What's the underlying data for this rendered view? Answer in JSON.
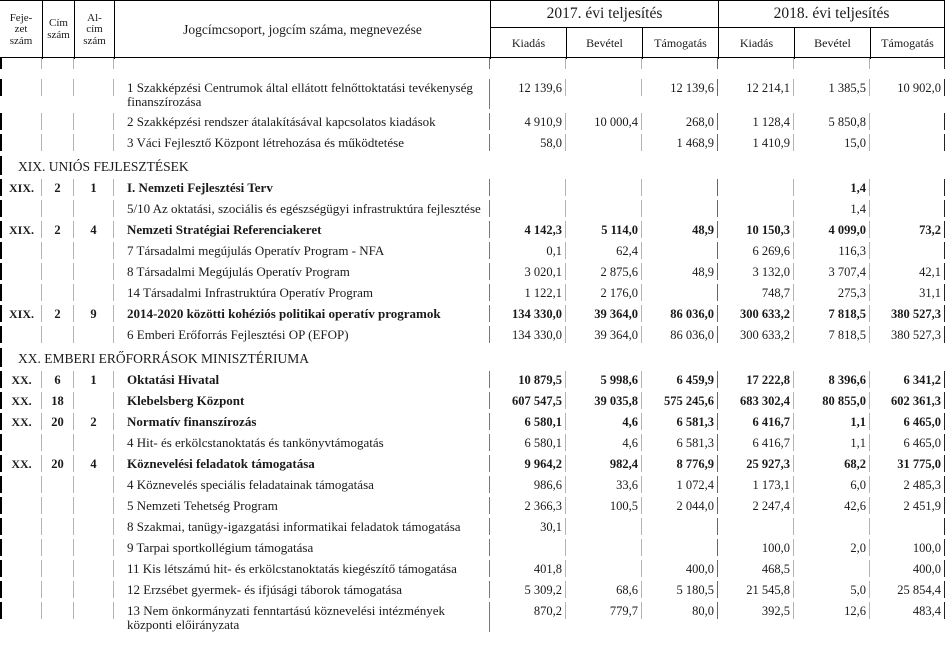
{
  "header": {
    "fejezet": "Feje-\nzet\nszám",
    "cim": "Cím\nszám",
    "alcim": "Al-\ncím\nszám",
    "name": "Jogcímcsoport, jogcím száma, megnevezése",
    "year2017": "2017. évi teljesítés",
    "year2018": "2018. évi teljesítés",
    "subcols": [
      "Kiadás",
      "Bevétel",
      "Támogatás"
    ]
  },
  "table": {
    "rows": [
      {
        "f": "",
        "c": "",
        "a": "",
        "n": "1 Szakképzési Centrumok által ellátott felnőttoktatási tevékenység finanszírozása",
        "b": false,
        "v": [
          "12 139,6",
          "",
          "12 139,6",
          "12 214,1",
          "1 385,5",
          "10 902,0"
        ]
      },
      {
        "f": "",
        "c": "",
        "a": "",
        "n": "2 Szakképzési rendszer átalakításával kapcsolatos kiadások",
        "b": false,
        "v": [
          "4 910,9",
          "10 000,4",
          "268,0",
          "1 128,4",
          "5 850,8",
          ""
        ]
      },
      {
        "f": "",
        "c": "",
        "a": "",
        "n": "3 Váci Fejlesztő Központ létrehozása és működtetése",
        "b": false,
        "v": [
          "58,0",
          "",
          "1 468,9",
          "1 410,9",
          "15,0",
          ""
        ]
      },
      {
        "s": "XIX. UNIÓS FEJLESZTÉSEK"
      },
      {
        "f": "XIX.",
        "c": "2",
        "a": "1",
        "n": "I. Nemzeti Fejlesztési Terv",
        "b": true,
        "v": [
          "",
          "",
          "",
          "",
          "1,4",
          ""
        ]
      },
      {
        "f": "",
        "c": "",
        "a": "",
        "n": "5/10 Az oktatási, szociális és egészségügyi infrastruktúra fejlesztése",
        "b": false,
        "v": [
          "",
          "",
          "",
          "",
          "1,4",
          ""
        ]
      },
      {
        "f": "XIX.",
        "c": "2",
        "a": "4",
        "n": "Nemzeti Stratégiai Referenciakeret",
        "b": true,
        "v": [
          "4 142,3",
          "5 114,0",
          "48,9",
          "10 150,3",
          "4 099,0",
          "73,2"
        ]
      },
      {
        "f": "",
        "c": "",
        "a": "",
        "n": "7 Társadalmi megújulás Operatív Program - NFA",
        "b": false,
        "v": [
          "0,1",
          "62,4",
          "",
          "6 269,6",
          "116,3",
          ""
        ]
      },
      {
        "f": "",
        "c": "",
        "a": "",
        "n": "8 Társadalmi Megújulás Operatív Program",
        "b": false,
        "v": [
          "3 020,1",
          "2 875,6",
          "48,9",
          "3 132,0",
          "3 707,4",
          "42,1"
        ]
      },
      {
        "f": "",
        "c": "",
        "a": "",
        "n": "14 Társadalmi Infrastruktúra Operatív Program",
        "b": false,
        "v": [
          "1 122,1",
          "2 176,0",
          "",
          "748,7",
          "275,3",
          "31,1"
        ]
      },
      {
        "f": "XIX.",
        "c": "2",
        "a": "9",
        "n": "2014-2020 közötti kohéziós politikai operatív programok",
        "b": true,
        "v": [
          "134 330,0",
          "39 364,0",
          "86 036,0",
          "300 633,2",
          "7 818,5",
          "380 527,3"
        ]
      },
      {
        "f": "",
        "c": "",
        "a": "",
        "n": "6 Emberi Erőforrás Fejlesztési OP (EFOP)",
        "b": false,
        "v": [
          "134 330,0",
          "39 364,0",
          "86 036,0",
          "300 633,2",
          "7 818,5",
          "380 527,3"
        ]
      },
      {
        "s": "XX. EMBERI ERŐFORRÁSOK MINISZTÉRIUMA"
      },
      {
        "f": "XX.",
        "c": "6",
        "a": "1",
        "n": "Oktatási Hivatal",
        "b": true,
        "v": [
          "10 879,5",
          "5 998,6",
          "6 459,9",
          "17 222,8",
          "8 396,6",
          "6 341,2"
        ]
      },
      {
        "f": "XX.",
        "c": "18",
        "a": "",
        "n": "Klebelsberg Központ",
        "b": true,
        "v": [
          "607 547,5",
          "39 035,8",
          "575 245,6",
          "683 302,4",
          "80 855,0",
          "602 361,3"
        ]
      },
      {
        "f": "XX.",
        "c": "20",
        "a": "2",
        "n": "Normatív finanszírozás",
        "b": true,
        "v": [
          "6 580,1",
          "4,6",
          "6 581,3",
          "6 416,7",
          "1,1",
          "6 465,0"
        ]
      },
      {
        "f": "",
        "c": "",
        "a": "",
        "n": "4 Hit- és erkölcstanoktatás és tankönyvtámogatás",
        "b": false,
        "v": [
          "6 580,1",
          "4,6",
          "6 581,3",
          "6 416,7",
          "1,1",
          "6 465,0"
        ]
      },
      {
        "f": "XX.",
        "c": "20",
        "a": "4",
        "n": "Köznevelési feladatok támogatása",
        "b": true,
        "v": [
          "9 964,2",
          "982,4",
          "8 776,9",
          "25 927,3",
          "68,2",
          "31 775,0"
        ]
      },
      {
        "f": "",
        "c": "",
        "a": "",
        "n": "4 Köznevelés speciális feladatainak támogatása",
        "b": false,
        "v": [
          "986,6",
          "33,6",
          "1 072,4",
          "1 173,1",
          "6,0",
          "2 485,3"
        ]
      },
      {
        "f": "",
        "c": "",
        "a": "",
        "n": "5 Nemzeti Tehetség Program",
        "b": false,
        "v": [
          "2 366,3",
          "100,5",
          "2 044,0",
          "2 247,4",
          "42,6",
          "2 451,9"
        ]
      },
      {
        "f": "",
        "c": "",
        "a": "",
        "n": "8 Szakmai, tanügy-igazgatási informatikai feladatok támogatása",
        "b": false,
        "v": [
          "30,1",
          "",
          "",
          "",
          "",
          ""
        ]
      },
      {
        "f": "",
        "c": "",
        "a": "",
        "n": "9 Tarpai sportkollégium támogatása",
        "b": false,
        "v": [
          "",
          "",
          "",
          "100,0",
          "2,0",
          "100,0"
        ]
      },
      {
        "f": "",
        "c": "",
        "a": "",
        "n": "11 Kis létszámú hit- és erkölcstanoktatás kiegészítő támogatása",
        "b": false,
        "v": [
          "401,8",
          "",
          "400,0",
          "468,5",
          "",
          "400,0"
        ]
      },
      {
        "f": "",
        "c": "",
        "a": "",
        "n": "12 Erzsébet gyermek- és ifjúsági táborok támogatása",
        "b": false,
        "v": [
          "5 309,2",
          "68,6",
          "5 180,5",
          "21 545,8",
          "5,0",
          "25 854,4"
        ]
      },
      {
        "f": "",
        "c": "",
        "a": "",
        "n": "13 Nem önkormányzati fenntartású köznevelési intézmények központi előirányzata",
        "b": false,
        "v": [
          "870,2",
          "779,7",
          "80,0",
          "392,5",
          "12,6",
          "483,4"
        ]
      }
    ]
  }
}
